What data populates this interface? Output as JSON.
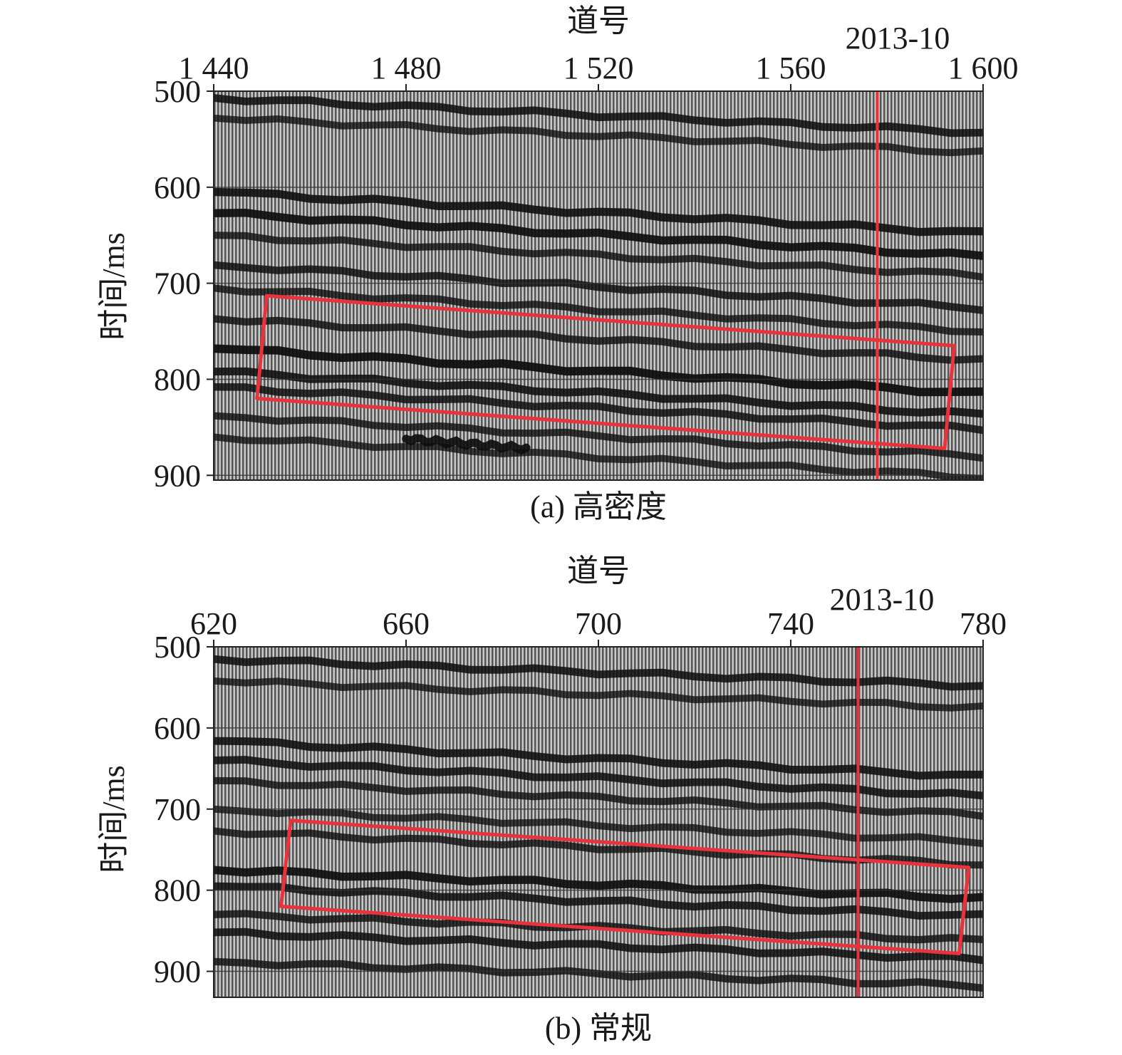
{
  "chart_data": [
    {
      "type": "heatmap",
      "panel_label": "(a) 高密度",
      "xlabel": "道号",
      "ylabel": "时间/ms",
      "x_ticks": [
        {
          "value": 1440,
          "label": "1 440"
        },
        {
          "value": 1480,
          "label": "1 480"
        },
        {
          "value": 1520,
          "label": "1 520"
        },
        {
          "value": 1560,
          "label": "1 560"
        },
        {
          "value": 1600,
          "label": "1 600"
        }
      ],
      "y_ticks": [
        {
          "value": 500,
          "label": "500"
        },
        {
          "value": 600,
          "label": "600"
        },
        {
          "value": 700,
          "label": "700"
        },
        {
          "value": 800,
          "label": "800"
        },
        {
          "value": 900,
          "label": "900"
        }
      ],
      "xlim": [
        1440,
        1600
      ],
      "ylim": [
        500,
        905
      ],
      "grid_y": [
        600,
        700,
        800,
        900
      ],
      "well": {
        "name": "2013-10",
        "trace": 1578
      },
      "highlight_box": {
        "color": "#e8323c",
        "corners": [
          [
            1451,
            713
          ],
          [
            1594,
            765
          ],
          [
            1592,
            872
          ],
          [
            1449,
            820
          ]
        ]
      },
      "reflectors": [
        {
          "trace": [
            1440,
            1600
          ],
          "time": [
            507,
            543
          ],
          "strength": 0.75
        },
        {
          "trace": [
            1440,
            1600
          ],
          "time": [
            528,
            564
          ],
          "strength": 0.55
        },
        {
          "trace": [
            1440,
            1600
          ],
          "time": [
            605,
            648
          ],
          "strength": 0.85
        },
        {
          "trace": [
            1440,
            1600
          ],
          "time": [
            627,
            672
          ],
          "strength": 0.9
        },
        {
          "trace": [
            1440,
            1600
          ],
          "time": [
            650,
            692
          ],
          "strength": 0.6
        },
        {
          "trace": [
            1440,
            1600
          ],
          "time": [
            681,
            726
          ],
          "strength": 0.7
        },
        {
          "trace": [
            1440,
            1600
          ],
          "time": [
            705,
            750
          ],
          "strength": 0.6
        },
        {
          "trace": [
            1440,
            1600
          ],
          "time": [
            737,
            780
          ],
          "strength": 0.65
        },
        {
          "trace": [
            1440,
            1600
          ],
          "time": [
            768,
            815
          ],
          "strength": 0.95
        },
        {
          "trace": [
            1440,
            1600
          ],
          "time": [
            792,
            837
          ],
          "strength": 0.8
        },
        {
          "trace": [
            1440,
            1600
          ],
          "time": [
            808,
            852
          ],
          "strength": 0.7
        },
        {
          "trace": [
            1440,
            1600
          ],
          "time": [
            838,
            880
          ],
          "strength": 0.6
        },
        {
          "trace": [
            1440,
            1600
          ],
          "time": [
            860,
            902
          ],
          "strength": 0.55
        },
        {
          "trace": [
            1480,
            1505
          ],
          "time": [
            862,
            872
          ],
          "strength": 0.9
        }
      ]
    },
    {
      "type": "heatmap",
      "panel_label": "(b) 常规",
      "xlabel": "道号",
      "ylabel": "时间/ms",
      "x_ticks": [
        {
          "value": 620,
          "label": "620"
        },
        {
          "value": 660,
          "label": "660"
        },
        {
          "value": 700,
          "label": "700"
        },
        {
          "value": 740,
          "label": "740"
        },
        {
          "value": 780,
          "label": "780"
        }
      ],
      "y_ticks": [
        {
          "value": 500,
          "label": "500"
        },
        {
          "value": 600,
          "label": "600"
        },
        {
          "value": 700,
          "label": "700"
        },
        {
          "value": 800,
          "label": "800"
        },
        {
          "value": 900,
          "label": "900"
        }
      ],
      "xlim": [
        620,
        780
      ],
      "ylim": [
        500,
        932
      ],
      "grid_y": [
        600,
        700,
        800,
        900
      ],
      "well": {
        "name": "2013-10",
        "trace": 754
      },
      "highlight_box": {
        "color": "#e8323c",
        "corners": [
          [
            636,
            714
          ],
          [
            777,
            772
          ],
          [
            775,
            878
          ],
          [
            634,
            820
          ]
        ]
      },
      "reflectors": [
        {
          "trace": [
            620,
            780
          ],
          "time": [
            515,
            548
          ],
          "strength": 0.75
        },
        {
          "trace": [
            620,
            780
          ],
          "time": [
            542,
            575
          ],
          "strength": 0.55
        },
        {
          "trace": [
            620,
            780
          ],
          "time": [
            616,
            660
          ],
          "strength": 0.8
        },
        {
          "trace": [
            620,
            780
          ],
          "time": [
            640,
            684
          ],
          "strength": 0.75
        },
        {
          "trace": [
            620,
            780
          ],
          "time": [
            665,
            707
          ],
          "strength": 0.6
        },
        {
          "trace": [
            620,
            780
          ],
          "time": [
            700,
            740
          ],
          "strength": 0.55
        },
        {
          "trace": [
            620,
            780
          ],
          "time": [
            727,
            768
          ],
          "strength": 0.6
        },
        {
          "trace": [
            620,
            780
          ],
          "time": [
            775,
            810
          ],
          "strength": 0.9
        },
        {
          "trace": [
            620,
            780
          ],
          "time": [
            795,
            832
          ],
          "strength": 0.75
        },
        {
          "trace": [
            620,
            780
          ],
          "time": [
            830,
            862
          ],
          "strength": 0.65
        },
        {
          "trace": [
            620,
            780
          ],
          "time": [
            852,
            885
          ],
          "strength": 0.75
        },
        {
          "trace": [
            620,
            780
          ],
          "time": [
            888,
            918
          ],
          "strength": 0.65
        }
      ]
    }
  ]
}
